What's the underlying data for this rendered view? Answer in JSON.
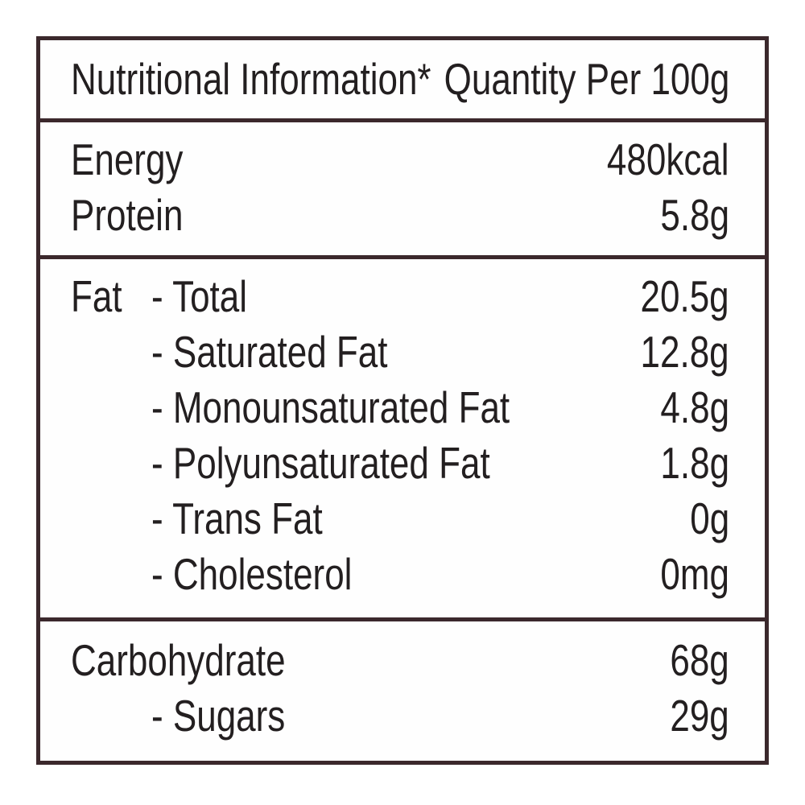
{
  "colors": {
    "border": "#3b282c",
    "text": "#231f20",
    "background": "#fefefe"
  },
  "table": {
    "header": {
      "title": "Nutritional Information*",
      "quantity_label": "Quantity Per 100g"
    },
    "sections": [
      {
        "name": "energy-protein",
        "rows": [
          {
            "label": "Energy",
            "value": "480kcal"
          },
          {
            "label": "Protein",
            "value": "5.8g"
          }
        ]
      },
      {
        "name": "fat",
        "rows": [
          {
            "prefix": "Fat",
            "label": "- Total",
            "value": "20.5g"
          },
          {
            "label": "- Saturated Fat",
            "value": "12.8g"
          },
          {
            "label": "- Monounsaturated Fat",
            "value": "4.8g"
          },
          {
            "label": "- Polyunsaturated Fat",
            "value": "1.8g"
          },
          {
            "label": "- Trans Fat",
            "value": "0g"
          },
          {
            "label": "- Cholesterol",
            "value": "0mg"
          }
        ]
      },
      {
        "name": "carbohydrate",
        "rows": [
          {
            "label": "Carbohydrate",
            "value": "68g"
          },
          {
            "label": "- Sugars",
            "value": "29g"
          }
        ]
      }
    ]
  }
}
